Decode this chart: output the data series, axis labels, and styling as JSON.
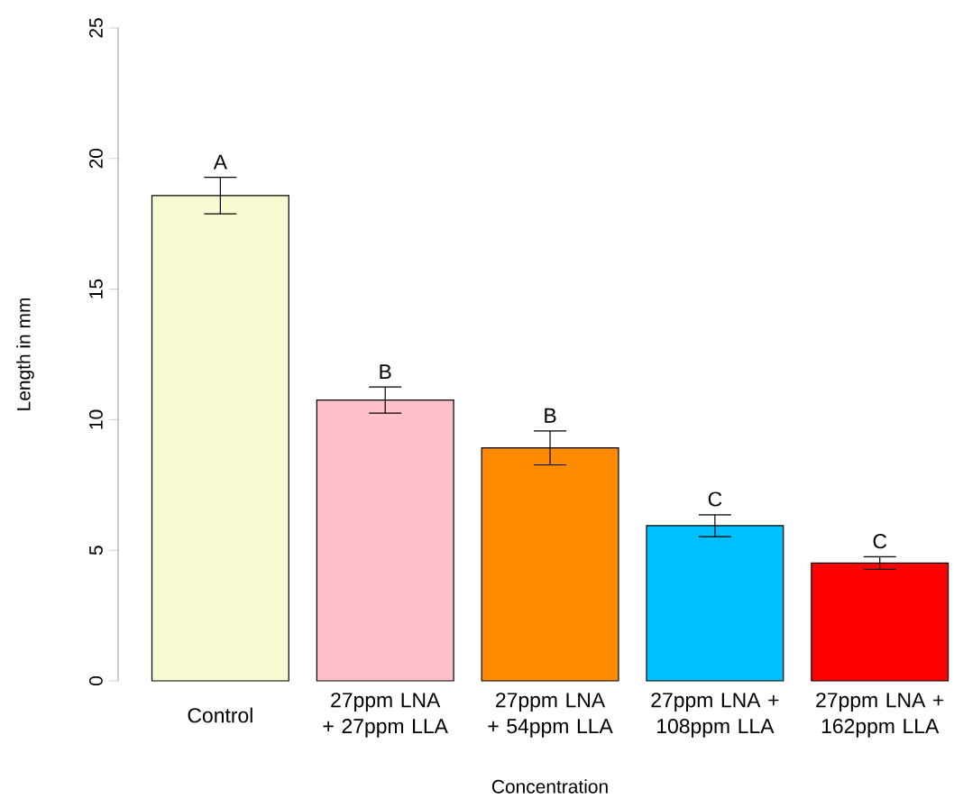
{
  "chart_data": {
    "type": "bar",
    "xlabel": "Concentration",
    "ylabel": "Length in mm",
    "categories": [
      "Control",
      "27ppm LNA + 27ppm LLA",
      "27ppm LNA + 54ppm LLA",
      "27ppm LNA + 108ppm LLA",
      "27ppm LNA + 162ppm LLA"
    ],
    "values": [
      18.58,
      10.75,
      8.92,
      5.94,
      4.51
    ],
    "errors": [
      0.7,
      0.5,
      0.65,
      0.42,
      0.24
    ],
    "colors": [
      "#fafad2",
      "#ffc0cb",
      "#ff8c00",
      "#00bfff",
      "#ff0000"
    ],
    "ylim": [
      0,
      25
    ],
    "yticks": [
      0,
      5,
      10,
      15,
      20,
      25
    ],
    "annotations": [
      "A",
      "B",
      "B",
      "C",
      "C"
    ]
  }
}
